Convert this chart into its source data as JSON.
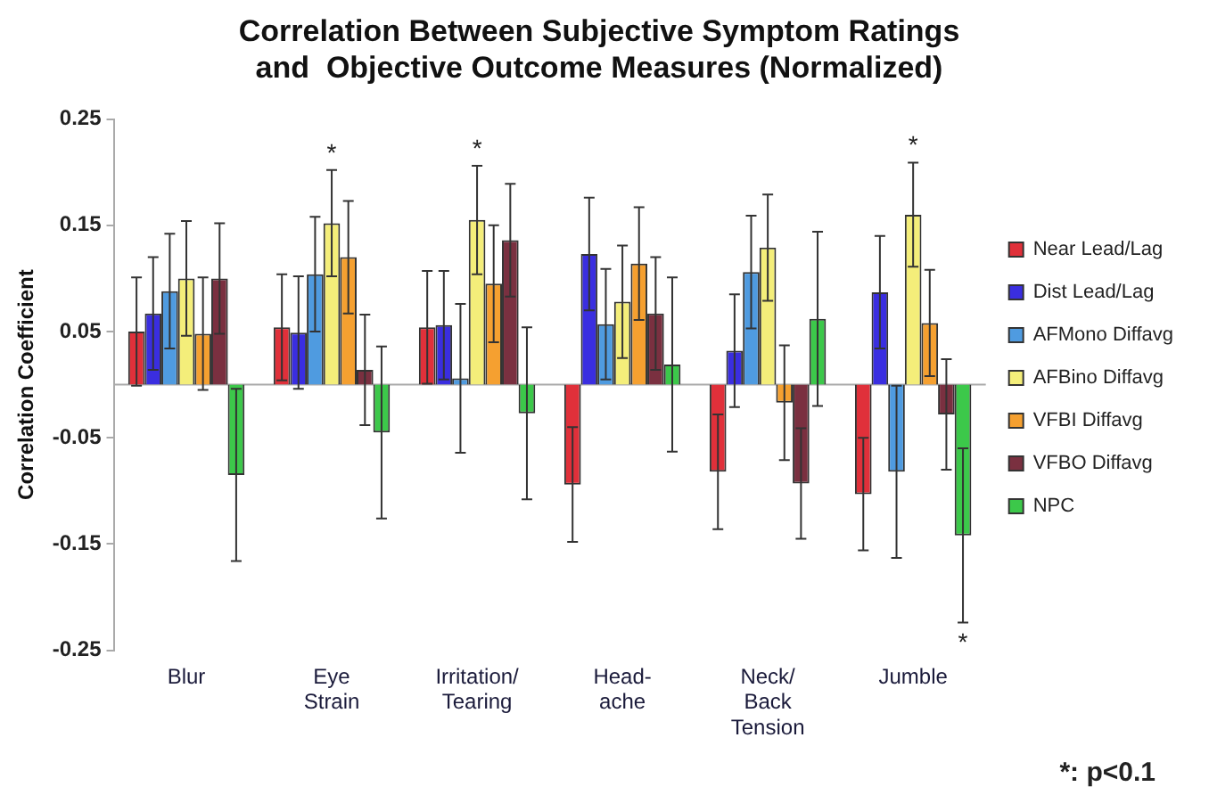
{
  "chart_data": {
    "type": "bar",
    "title": "Correlation Between Subjective Symptom Ratings\nand  Objective Outcome Measures (Normalized)",
    "ylabel": "Correlation Coefficient",
    "categories": [
      "Blur",
      "Eye\nStrain",
      "Irritation/\nTearing",
      "Head-\nache",
      "Neck/\nBack\nTension",
      "Jumble"
    ],
    "series": [
      {
        "name": "Near Lead/Lag",
        "color": "#e0303a",
        "values": [
          0.05,
          0.054,
          0.054,
          -0.094,
          -0.082,
          -0.103
        ],
        "errors": [
          0.051,
          0.05,
          0.053,
          0.054,
          0.054,
          0.053
        ]
      },
      {
        "name": "Dist Lead/Lag",
        "color": "#3a2ee0",
        "values": [
          0.067,
          0.049,
          0.056,
          0.123,
          0.032,
          0.087
        ],
        "errors": [
          0.053,
          0.053,
          0.051,
          0.053,
          0.053,
          0.053
        ]
      },
      {
        "name": "AFMono Diffavg",
        "color": "#4f9be0",
        "values": [
          0.088,
          0.104,
          0.006,
          0.057,
          0.106,
          -0.082
        ],
        "errors": [
          0.054,
          0.054,
          0.07,
          0.052,
          0.053,
          0.081
        ]
      },
      {
        "name": "AFBino Diffavg",
        "color": "#f4ee7a",
        "values": [
          0.1,
          0.152,
          0.155,
          0.078,
          0.129,
          0.16
        ],
        "errors": [
          0.054,
          0.05,
          0.051,
          0.053,
          0.05,
          0.049
        ]
      },
      {
        "name": "VFBI Diffavg",
        "color": "#f5a030",
        "values": [
          0.048,
          0.12,
          0.095,
          0.114,
          -0.017,
          0.058
        ],
        "errors": [
          0.053,
          0.053,
          0.055,
          0.053,
          0.054,
          0.05
        ]
      },
      {
        "name": "VFBO Diffavg",
        "color": "#7a3040",
        "values": [
          0.1,
          0.014,
          0.136,
          0.067,
          -0.093,
          -0.028
        ],
        "errors": [
          0.052,
          0.052,
          0.053,
          0.053,
          0.052,
          0.052
        ]
      },
      {
        "name": "NPC",
        "color": "#3cc84a",
        "values": [
          -0.085,
          -0.045,
          -0.027,
          0.019,
          0.062,
          -0.142
        ],
        "errors": [
          0.081,
          0.081,
          0.081,
          0.082,
          0.082,
          0.082
        ]
      }
    ],
    "ylim": [
      -0.25,
      0.25
    ],
    "yticks": [
      -0.25,
      -0.15,
      -0.05,
      0.05,
      0.15,
      0.25
    ],
    "grid": false,
    "legend": "right",
    "annotations": [
      {
        "text": "*",
        "x": "Eye\nStrain",
        "y": 0.152
      },
      {
        "text": "*",
        "x": "Irritation/\nTearing",
        "y": 0.155
      },
      {
        "text": "*",
        "x": "Jumble",
        "y": 0.16
      },
      "*",
      "*: p<0.1"
    ]
  }
}
